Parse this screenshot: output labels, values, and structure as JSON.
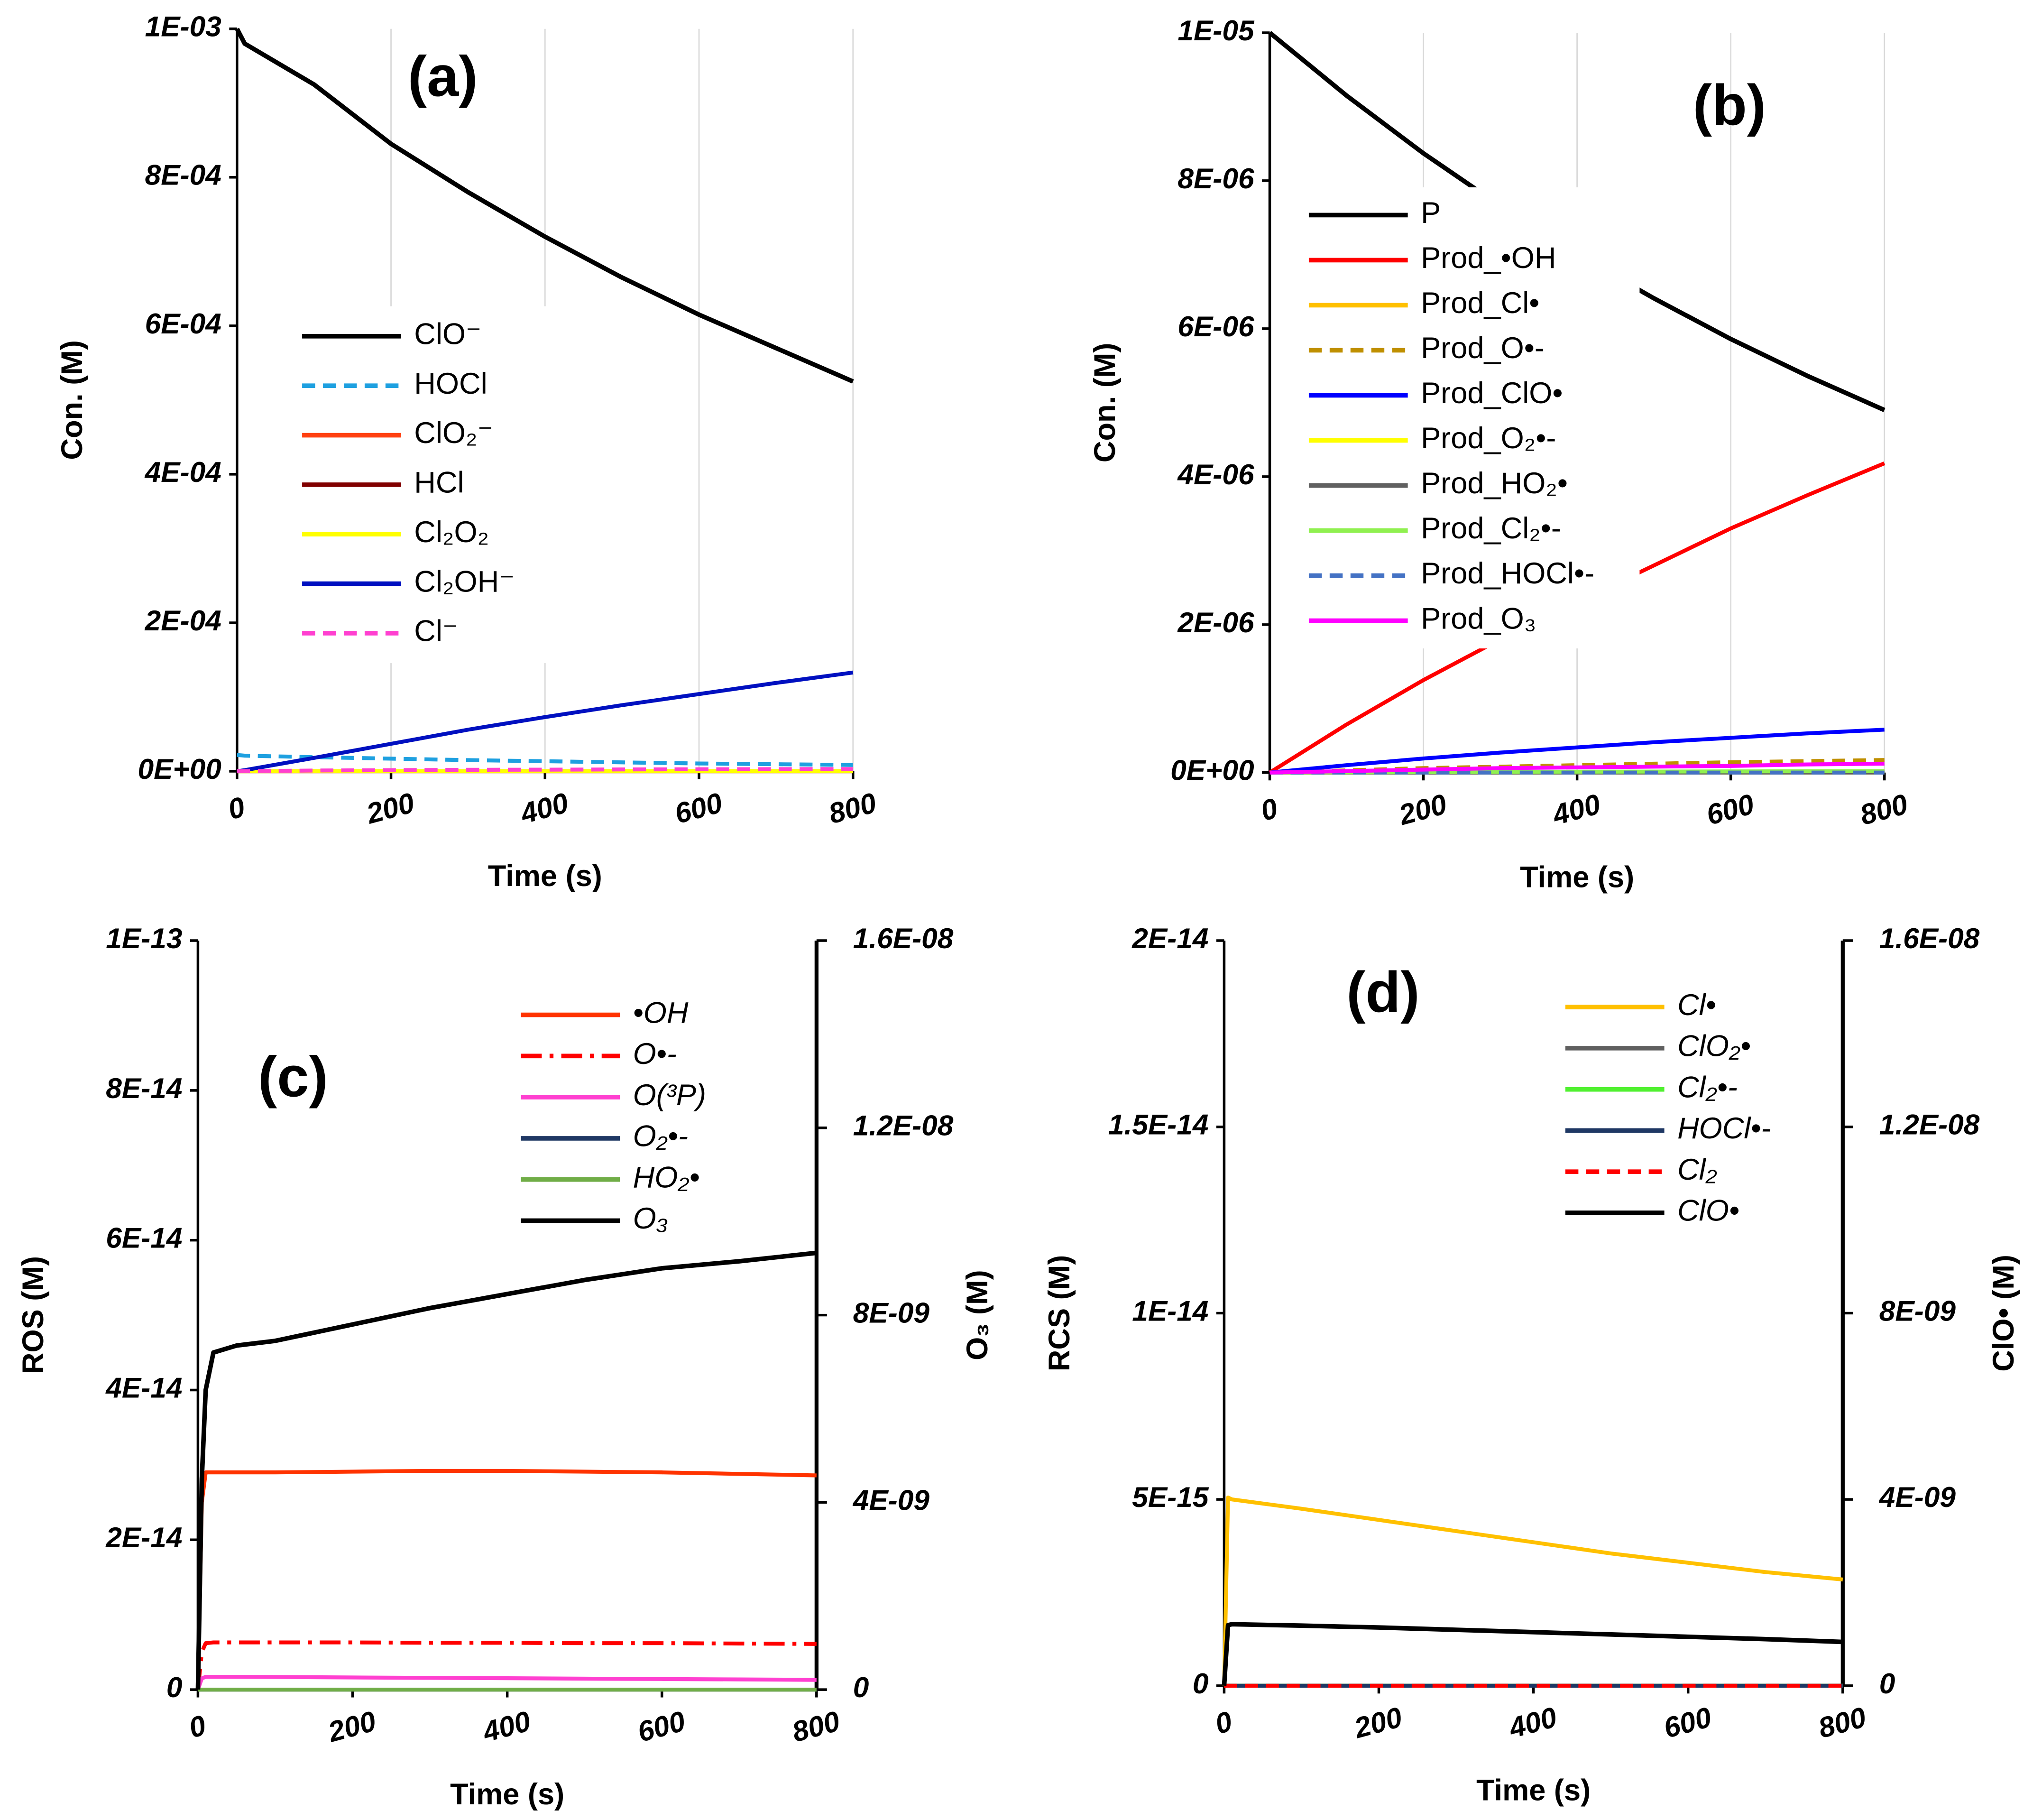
{
  "chart_data": [
    {
      "type": "line",
      "title": "(a)",
      "xlabel": "Time (s)",
      "ylabel": "Con. (M)",
      "grid": "x",
      "xlim": [
        0,
        800
      ],
      "xticks": [
        0,
        200,
        400,
        600,
        800
      ],
      "ylim": [
        0,
        0.001
      ],
      "yticks": [
        {
          "value": 0,
          "label": "0E+00"
        },
        {
          "value": 0.0002,
          "label": "2E-04"
        },
        {
          "value": 0.0004,
          "label": "4E-04"
        },
        {
          "value": 0.0006,
          "label": "6E-04"
        },
        {
          "value": 0.0008,
          "label": "8E-04"
        },
        {
          "value": 0.001,
          "label": "1E-03"
        }
      ],
      "x": [
        0,
        10,
        100,
        200,
        300,
        400,
        500,
        600,
        700,
        800
      ],
      "series": [
        {
          "name": "ClO⁻",
          "color": "#000000",
          "values": [
            0.001,
            0.00098,
            0.000925,
            0.000845,
            0.00078,
            0.00072,
            0.000665,
            0.000615,
            0.00057,
            0.000525
          ]
        },
        {
          "name": "HOCl",
          "color": "#1ea0e0",
          "dash": "dashed",
          "values": [
            2.2e-05,
            2.1e-05,
            1.9e-05,
            1.7e-05,
            1.5e-05,
            1.35e-05,
            1.2e-05,
            1.05e-05,
            9.5e-06,
            8.5e-06
          ]
        },
        {
          "name": "ClO₂⁻",
          "color": "#ff4010",
          "values": [
            0,
            0,
            0,
            0,
            0,
            0,
            0,
            0,
            0,
            0
          ]
        },
        {
          "name": "HCl",
          "color": "#800000",
          "values": [
            0,
            0,
            0,
            0,
            0,
            0,
            0,
            0,
            0,
            0
          ]
        },
        {
          "name": "Cl₂O₂",
          "color": "#ffff00",
          "values": [
            0,
            0,
            0,
            0,
            0,
            0,
            0,
            0,
            0,
            0
          ]
        },
        {
          "name": "Cl₂OH⁻",
          "color": "#0010c0",
          "values": [
            0,
            1.5e-06,
            1.8e-05,
            3.7e-05,
            5.6e-05,
            7.3e-05,
            8.9e-05,
            0.000104,
            0.000119,
            0.000133
          ]
        },
        {
          "name": "Cl⁻",
          "color": "#ff40d0",
          "dash": "dashed",
          "values": [
            0,
            2e-07,
            1e-06,
            1.5e-06,
            2e-06,
            2.2e-06,
            2.5e-06,
            2.7e-06,
            2.9e-06,
            3e-06
          ]
        }
      ]
    },
    {
      "type": "line",
      "title": "(b)",
      "xlabel": "Time (s)",
      "ylabel": "Con. (M)",
      "grid": "x",
      "xlim": [
        0,
        800
      ],
      "xticks": [
        0,
        200,
        400,
        600,
        800
      ],
      "ylim": [
        0,
        1e-05
      ],
      "yticks": [
        {
          "value": 0,
          "label": "0E+00"
        },
        {
          "value": 2e-06,
          "label": "2E-06"
        },
        {
          "value": 4e-06,
          "label": "4E-06"
        },
        {
          "value": 6e-06,
          "label": "6E-06"
        },
        {
          "value": 8e-06,
          "label": "8E-06"
        },
        {
          "value": 1e-05,
          "label": "1E-05"
        }
      ],
      "x": [
        0,
        100,
        200,
        300,
        400,
        500,
        600,
        700,
        800
      ],
      "series": [
        {
          "name": "P",
          "color": "#000000",
          "values": [
            1e-05,
            9.15e-06,
            8.37e-06,
            7.66e-06,
            7e-06,
            6.41e-06,
            5.86e-06,
            5.36e-06,
            4.9e-06
          ]
        },
        {
          "name": "Prod_•OH",
          "color": "#ff0000",
          "values": [
            0,
            6.5e-07,
            1.25e-06,
            1.8e-06,
            2.3e-06,
            2.8e-06,
            3.3e-06,
            3.75e-06,
            4.18e-06
          ]
        },
        {
          "name": "Prod_Cl•",
          "color": "#ffc000",
          "values": [
            0,
            2e-09,
            4e-09,
            6e-09,
            8e-09,
            9e-09,
            1e-08,
            1.1e-08,
            1.2e-08
          ]
        },
        {
          "name": "Prod_O•-",
          "color": "#bf8f00",
          "dash": "dashed",
          "values": [
            0,
            3e-08,
            6e-08,
            8e-08,
            1e-07,
            1.2e-07,
            1.4e-07,
            1.55e-07,
            1.7e-07
          ]
        },
        {
          "name": "Prod_ClO•",
          "color": "#0000ff",
          "values": [
            0,
            1e-07,
            1.9e-07,
            2.7e-07,
            3.4e-07,
            4.1e-07,
            4.7e-07,
            5.3e-07,
            5.8e-07
          ]
        },
        {
          "name": "Prod_O₂•-",
          "color": "#ffff00",
          "values": [
            0,
            0,
            0,
            0,
            0,
            0,
            0,
            0,
            0
          ]
        },
        {
          "name": "Prod_HO₂•",
          "color": "#606060",
          "values": [
            0,
            0,
            0,
            0,
            0,
            0,
            0,
            0,
            0
          ]
        },
        {
          "name": "Prod_Cl₂•-",
          "color": "#90f050",
          "values": [
            0,
            3e-09,
            6e-09,
            9e-09,
            1.2e-08,
            1.4e-08,
            1.6e-08,
            1.8e-08,
            2e-08
          ]
        },
        {
          "name": "Prod_HOCl•-",
          "color": "#4472c4",
          "dash": "dashed",
          "values": [
            0,
            0,
            0,
            0,
            0,
            0,
            0,
            0,
            0
          ]
        },
        {
          "name": "Prod_O₃",
          "color": "#ff00ff",
          "values": [
            0,
            2e-08,
            4e-08,
            6e-08,
            7e-08,
            8e-08,
            9e-08,
            1.1e-07,
            1.2e-07
          ]
        }
      ]
    },
    {
      "type": "line",
      "title": "(c)",
      "xlabel": "Time (s)",
      "ylabel": "ROS (M)",
      "y2label": "O₃ (M)",
      "xlim": [
        0,
        800
      ],
      "xticks": [
        0,
        200,
        400,
        600,
        800
      ],
      "ylim": [
        0,
        1e-13
      ],
      "yticks": [
        0,
        {
          "value": 2e-14,
          "label": "2E-14"
        },
        {
          "value": 4e-14,
          "label": "4E-14"
        },
        {
          "value": 6e-14,
          "label": "6E-14"
        },
        {
          "value": 8e-14,
          "label": "8E-14"
        },
        {
          "value": 1e-13,
          "label": "1E-13"
        }
      ],
      "y2lim": [
        0,
        1.6e-08
      ],
      "y2ticks": [
        0,
        {
          "value": 4e-09,
          "label": "4E-09"
        },
        {
          "value": 8e-09,
          "label": "8E-09"
        },
        {
          "value": 1.2e-08,
          "label": "1.2E-08"
        },
        {
          "value": 1.6e-08,
          "label": "1.6E-08"
        }
      ],
      "x": [
        0,
        5,
        10,
        20,
        50,
        100,
        200,
        300,
        400,
        500,
        600,
        700,
        800
      ],
      "series": [
        {
          "name": "•OH",
          "color": "#ff3300",
          "values": [
            0,
            2.5e-14,
            2.9e-14,
            2.9e-14,
            2.9e-14,
            2.9e-14,
            2.91e-14,
            2.92e-14,
            2.92e-14,
            2.91e-14,
            2.9e-14,
            2.88e-14,
            2.86e-14
          ]
        },
        {
          "name": "O•-",
          "color": "#ff0000",
          "dash": "dashdot",
          "values": [
            0,
            5e-15,
            6.2e-15,
            6.3e-15,
            6.3e-15,
            6.3e-15,
            6.3e-15,
            6.25e-15,
            6.25e-15,
            6.2e-15,
            6.2e-15,
            6.15e-15,
            6.1e-15
          ]
        },
        {
          "name": "O(³P)",
          "color": "#ff40d0",
          "values": [
            0,
            1.5e-15,
            1.7e-15,
            1.7e-15,
            1.7e-15,
            1.68e-15,
            1.62e-15,
            1.57e-15,
            1.52e-15,
            1.46e-15,
            1.41e-15,
            1.36e-15,
            1.3e-15
          ]
        },
        {
          "name": "O₂•-",
          "color": "#1f3864",
          "values": [
            0,
            0,
            0,
            0,
            0,
            0,
            0,
            0,
            0,
            0,
            0,
            0,
            0
          ]
        },
        {
          "name": "HO₂•",
          "color": "#70ad47",
          "values": [
            0,
            0,
            0,
            0,
            0,
            0,
            0,
            0,
            0,
            0,
            0,
            0,
            0
          ]
        },
        {
          "name": "O₃",
          "color": "#000000",
          "axis": "y2",
          "values": [
            0,
            4.5e-09,
            6.4e-09,
            7.2e-09,
            7.35e-09,
            7.45e-09,
            7.8e-09,
            8.15e-09,
            8.45e-09,
            8.75e-09,
            9e-09,
            9.15e-09,
            9.33e-09
          ]
        }
      ]
    },
    {
      "type": "line",
      "title": "(d)",
      "xlabel": "Time (s)",
      "ylabel": "RCS (M)",
      "y2label": "ClO• (M)",
      "xlim": [
        0,
        800
      ],
      "xticks": [
        0,
        200,
        400,
        600,
        800
      ],
      "ylim": [
        0,
        2e-14
      ],
      "yticks": [
        0,
        {
          "value": 5e-15,
          "label": "5E-15"
        },
        {
          "value": 1e-14,
          "label": "1E-14"
        },
        {
          "value": 1.5e-14,
          "label": "1.5E-14"
        },
        {
          "value": 2e-14,
          "label": "2E-14"
        }
      ],
      "y2lim": [
        0,
        1.6e-08
      ],
      "y2ticks": [
        0,
        {
          "value": 4e-09,
          "label": "4E-09"
        },
        {
          "value": 8e-09,
          "label": "8E-09"
        },
        {
          "value": 1.2e-08,
          "label": "1.2E-08"
        },
        {
          "value": 1.6e-08,
          "label": "1.6E-08"
        }
      ],
      "x": [
        0,
        5,
        10,
        100,
        200,
        300,
        400,
        500,
        600,
        700,
        800
      ],
      "series": [
        {
          "name": "Cl•",
          "color": "#ffc000",
          "values": [
            0,
            5.05e-15,
            5e-15,
            4.75e-15,
            4.45e-15,
            4.15e-15,
            3.85e-15,
            3.55e-15,
            3.3e-15,
            3.05e-15,
            2.85e-15
          ]
        },
        {
          "name": "ClO₂•",
          "color": "#606060",
          "values": [
            0,
            0,
            0,
            0,
            0,
            0,
            0,
            0,
            0,
            0,
            0
          ]
        },
        {
          "name": "Cl₂•-",
          "color": "#50f030",
          "values": [
            0,
            0,
            0,
            0,
            0,
            0,
            0,
            0,
            0,
            0,
            0
          ]
        },
        {
          "name": "HOCl•-",
          "color": "#1f3864",
          "values": [
            0,
            0,
            0,
            0,
            0,
            0,
            0,
            0,
            0,
            0,
            0
          ]
        },
        {
          "name": "Cl₂",
          "color": "#ff0000",
          "dash": "dashed",
          "values": [
            0,
            0,
            0,
            0,
            0,
            0,
            0,
            0,
            0,
            0,
            0
          ]
        },
        {
          "name": "ClO•",
          "color": "#000000",
          "axis": "y2",
          "values": [
            0,
            1.3e-09,
            1.32e-09,
            1.29e-09,
            1.25e-09,
            1.2e-09,
            1.15e-09,
            1.1e-09,
            1.05e-09,
            1e-09,
            9.4e-10
          ]
        }
      ]
    }
  ]
}
